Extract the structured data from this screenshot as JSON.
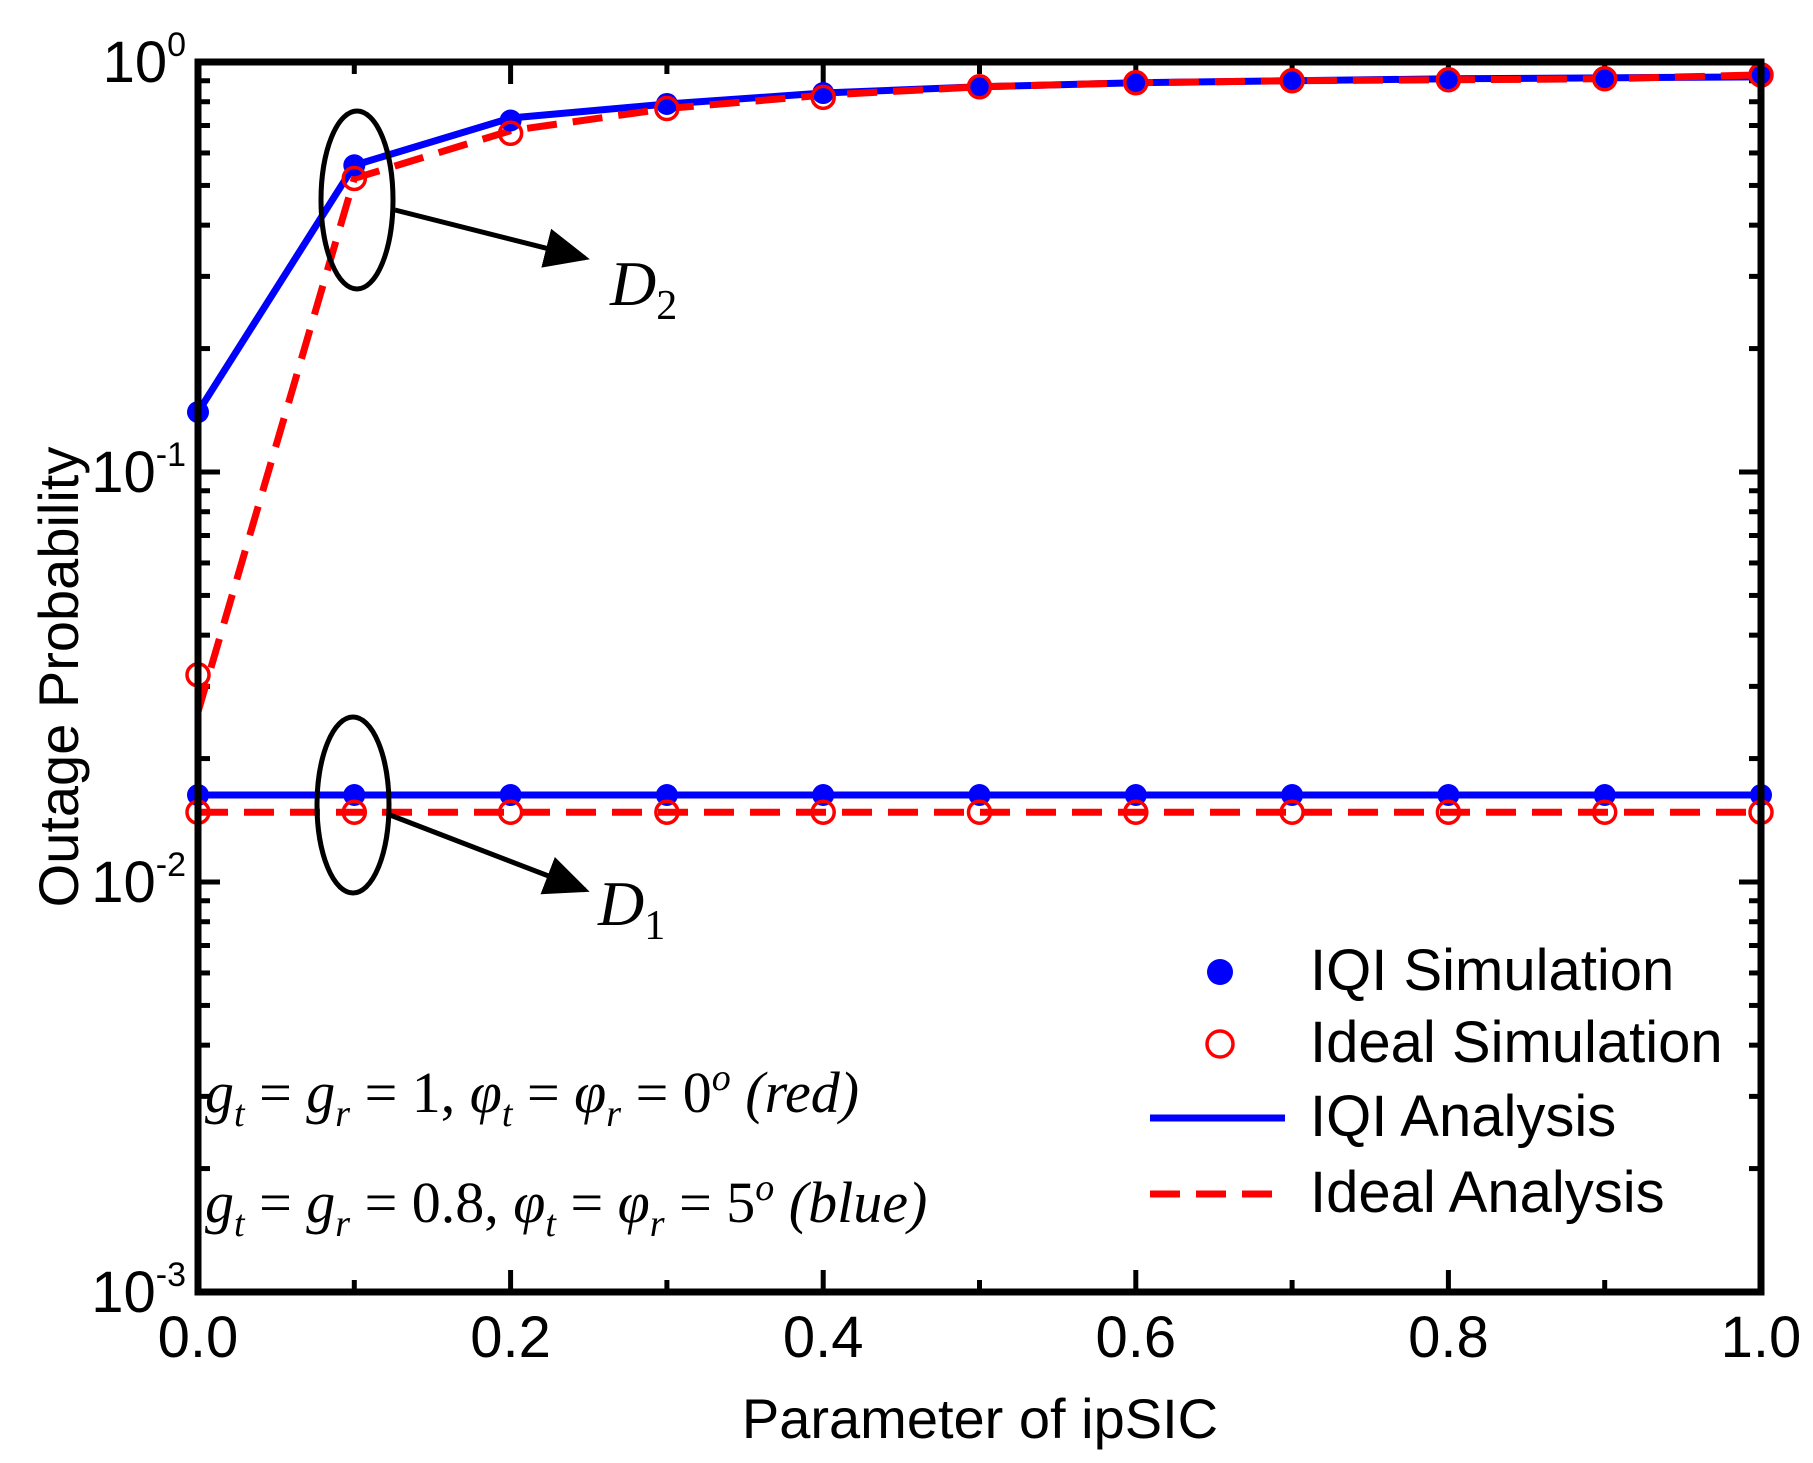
{
  "chart_data": {
    "type": "line",
    "xlabel": "Parameter of ipSIC",
    "ylabel": "Outage Probability",
    "xlim": [
      0.0,
      1.0
    ],
    "ylim": [
      0.001,
      1
    ],
    "yscale": "log",
    "x_ticks": [
      "0.0",
      "0.2",
      "0.4",
      "0.6",
      "0.8",
      "1.0"
    ],
    "y_ticks": [
      {
        "value": 1,
        "base": "10",
        "exp": "0"
      },
      {
        "value": 0.1,
        "base": "10",
        "exp": "-1"
      },
      {
        "value": 0.01,
        "base": "10",
        "exp": "-2"
      },
      {
        "value": 0.001,
        "base": "10",
        "exp": "-3"
      }
    ],
    "x": [
      0.0,
      0.1,
      0.2,
      0.3,
      0.4,
      0.5,
      0.6,
      0.7,
      0.8,
      0.9,
      1.0
    ],
    "series": [
      {
        "name": "IQI Simulation",
        "style": "marker-filled",
        "color": "#0000ff",
        "values": [
          0.0163,
          0.0163,
          0.0163,
          0.0163,
          0.0163,
          0.0163,
          0.0163,
          0.0163,
          0.0163,
          0.0163,
          0.0163
        ]
      },
      {
        "name": "IQI Simulation",
        "style": "marker-filled",
        "color": "#0000ff",
        "legend": false,
        "values": [
          0.14,
          0.56,
          0.72,
          0.79,
          0.84,
          0.87,
          0.89,
          0.9,
          0.91,
          0.915,
          0.92
        ]
      },
      {
        "name": "Ideal Simulation",
        "style": "marker-open",
        "color": "#ff0000",
        "values": [
          0.0148,
          0.0148,
          0.0148,
          0.0148,
          0.0148,
          0.0148,
          0.0148,
          0.0148,
          0.0148,
          0.0148,
          0.0148
        ]
      },
      {
        "name": "Ideal Simulation",
        "style": "marker-open",
        "color": "#ff0000",
        "legend": false,
        "values": [
          0.032,
          0.52,
          0.67,
          0.77,
          0.82,
          0.87,
          0.89,
          0.9,
          0.905,
          0.91,
          0.93
        ]
      },
      {
        "name": "IQI Analysis",
        "style": "solid",
        "color": "#0000ff",
        "values": [
          0.0163,
          0.0163,
          0.0163,
          0.0163,
          0.0163,
          0.0163,
          0.0163,
          0.0163,
          0.0163,
          0.0163,
          0.0163
        ]
      },
      {
        "name": "IQI Analysis",
        "style": "solid",
        "color": "#0000ff",
        "legend": false,
        "values": [
          0.14,
          0.56,
          0.73,
          0.79,
          0.84,
          0.87,
          0.89,
          0.9,
          0.91,
          0.915,
          0.92
        ]
      },
      {
        "name": "Ideal Analysis",
        "style": "dashed",
        "color": "#ff0000",
        "values": [
          0.0148,
          0.0148,
          0.0148,
          0.0148,
          0.0148,
          0.0148,
          0.0148,
          0.0148,
          0.0148,
          0.0148,
          0.0148
        ]
      },
      {
        "name": "Ideal Analysis",
        "style": "dashed",
        "color": "#ff0000",
        "legend": false,
        "values": [
          0.026,
          0.52,
          0.68,
          0.77,
          0.83,
          0.87,
          0.89,
          0.9,
          0.905,
          0.91,
          0.93
        ]
      }
    ],
    "annotations": [
      {
        "base": "D",
        "sub": "2"
      },
      {
        "base": "D",
        "sub": "1"
      }
    ],
    "param_notes": {
      "red": {
        "g1": "g",
        "s1": "t",
        "g2": "g",
        "s2": "r",
        "val1": "1",
        "p1": "φ",
        "ps1": "t",
        "p2": "φ",
        "ps2": "r",
        "deg": "0",
        "sup": "o",
        "tag": "(red)"
      },
      "blue": {
        "g1": "g",
        "s1": "t",
        "g2": "g",
        "s2": "r",
        "val1": "0.8",
        "p1": "φ",
        "ps1": "t",
        "p2": "φ",
        "ps2": "r",
        "deg": "5",
        "sup": "o",
        "tag": "(blue)"
      }
    },
    "legend": [
      "IQI Simulation",
      "Ideal Simulation",
      "IQI Analysis",
      "Ideal Analysis"
    ],
    "legend_position": "bottom-right"
  }
}
